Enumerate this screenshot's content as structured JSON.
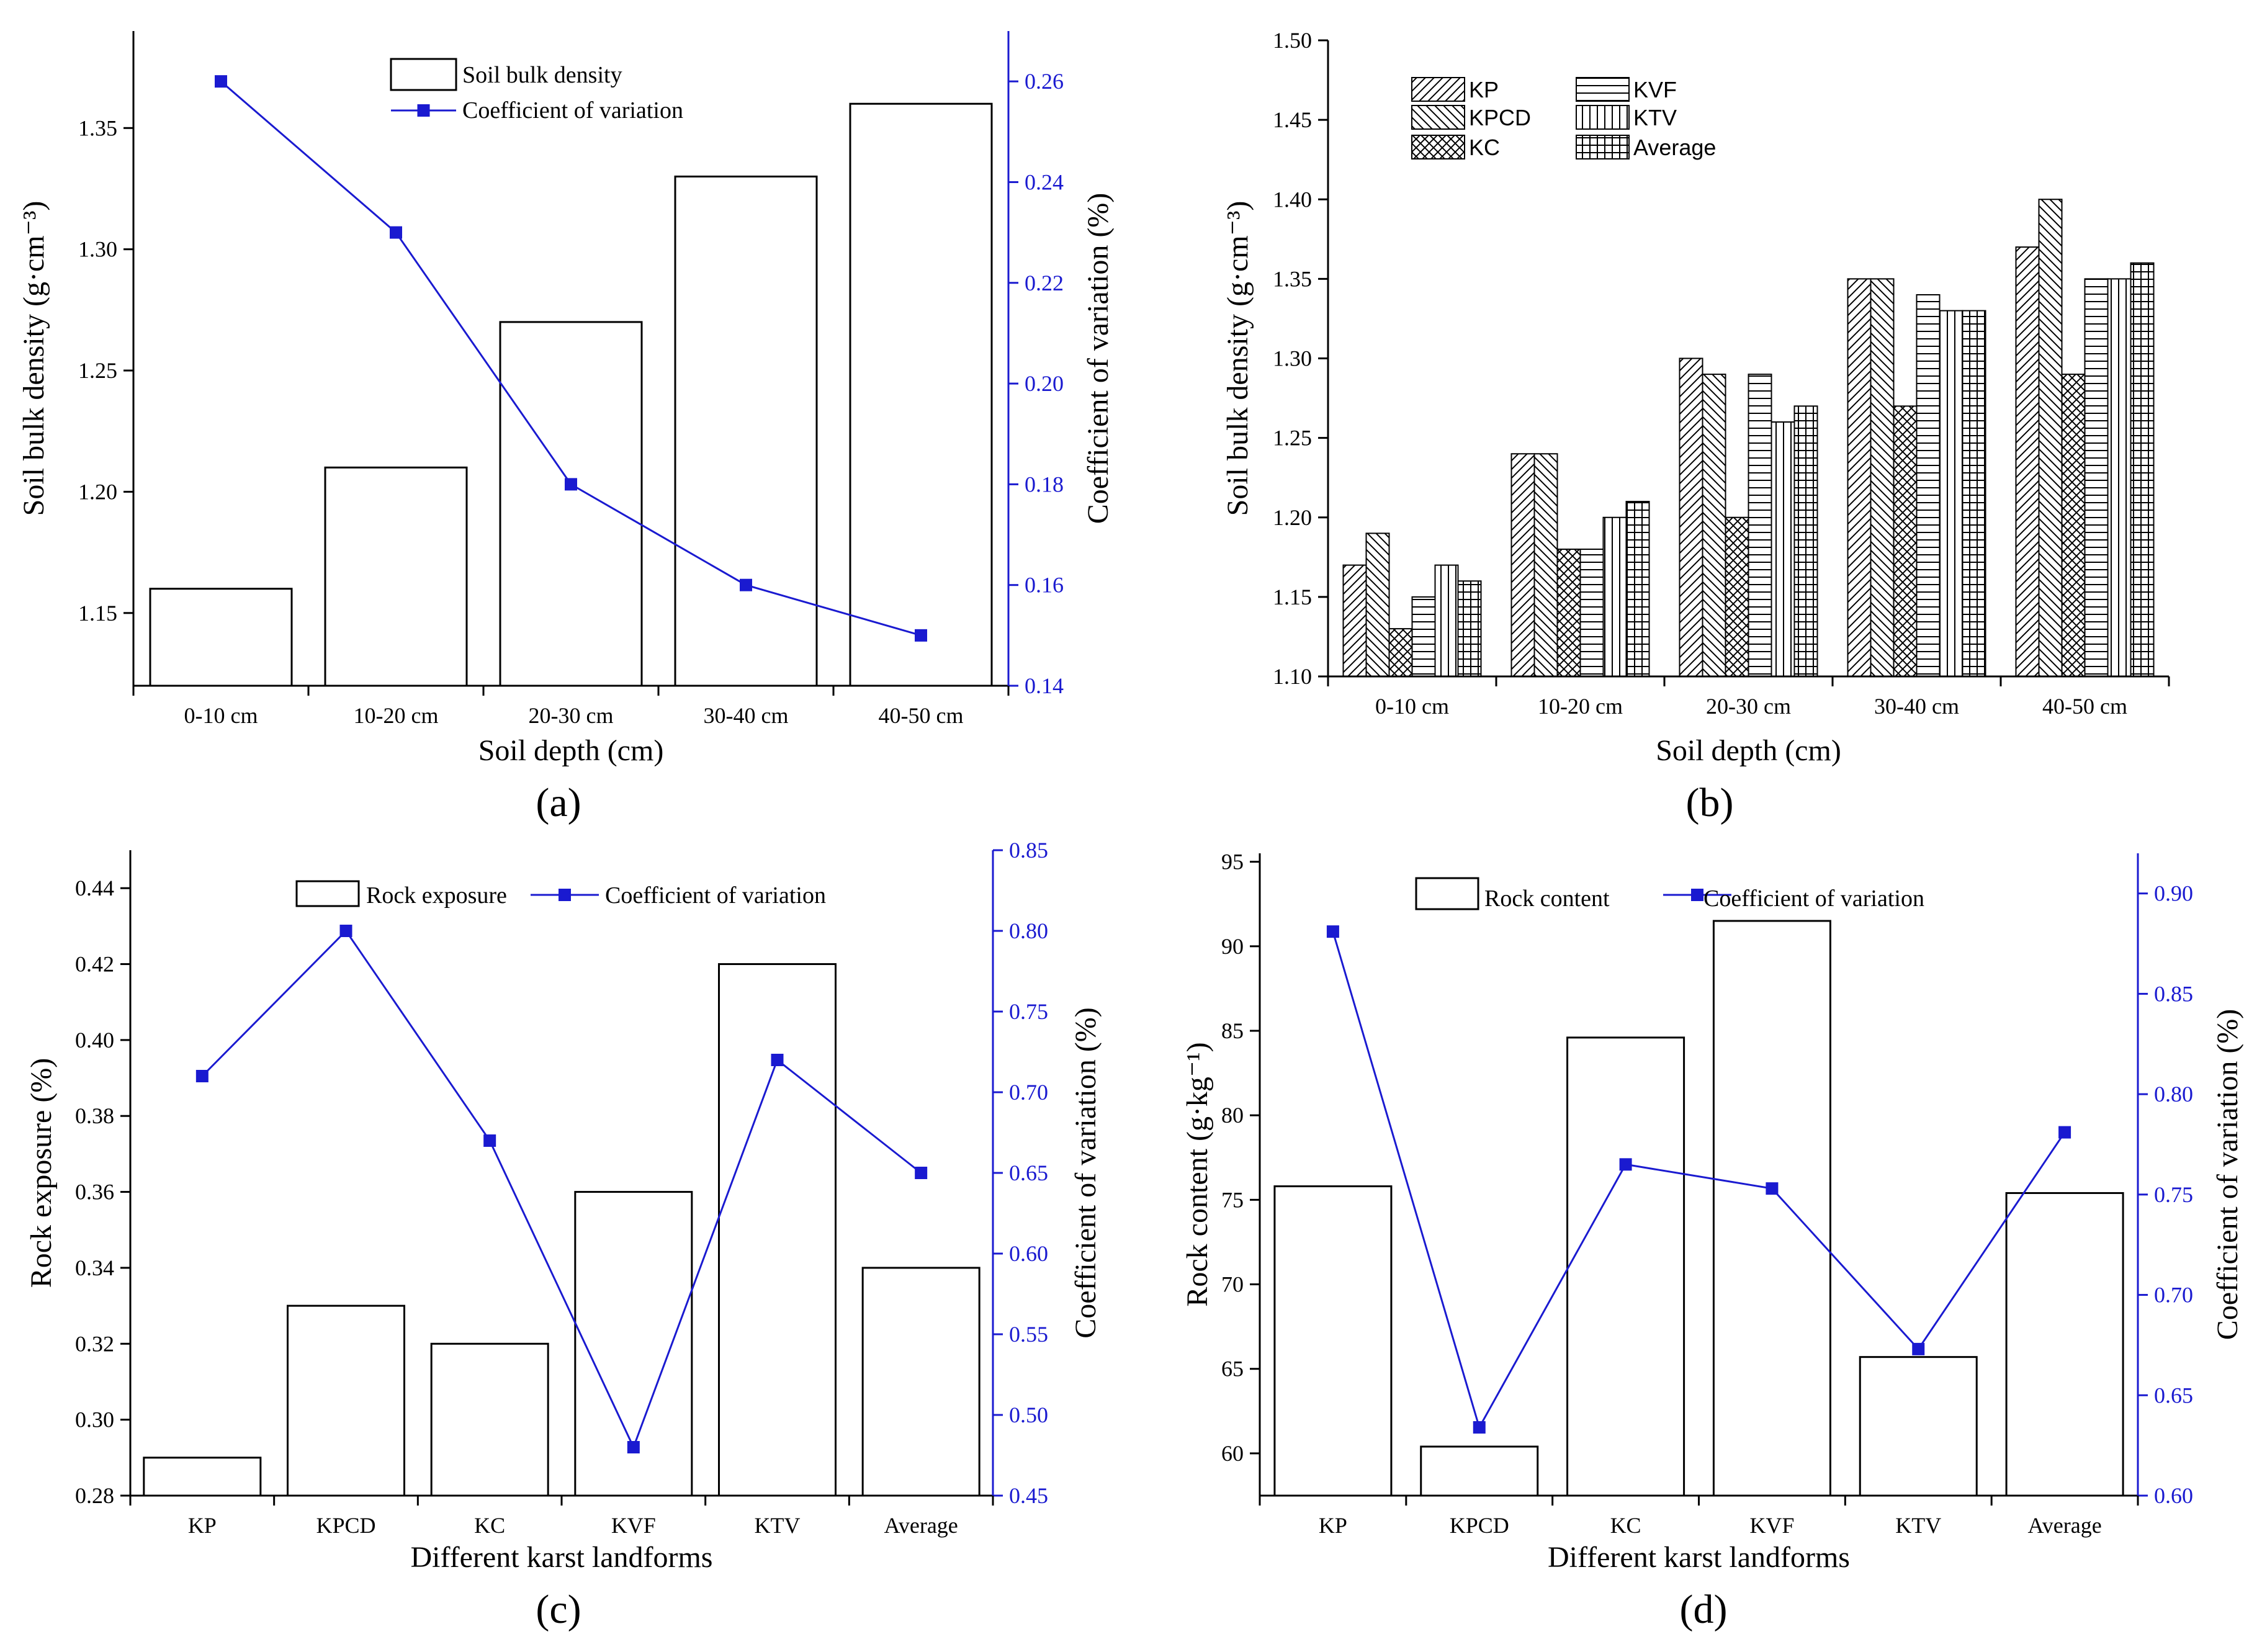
{
  "chart_data": [
    {
      "panel": "(a)",
      "type": "bar+line",
      "xlabel": "Soil depth (cm)",
      "ylabel": "Soil bulk density (g·cm⁻³)",
      "y2label": "Coefficient of variation (%)",
      "categories": [
        "0-10 cm",
        "10-20 cm",
        "20-30 cm",
        "30-40 cm",
        "40-50 cm"
      ],
      "ylim": [
        1.12,
        1.39
      ],
      "yticks": [
        "1.15",
        "1.20",
        "1.25",
        "1.30",
        "1.35"
      ],
      "y2lim": [
        0.14,
        0.27
      ],
      "y2ticks": [
        "0.14",
        "0.16",
        "0.18",
        "0.20",
        "0.22",
        "0.24",
        "0.26"
      ],
      "legend_position": "top-center",
      "series": [
        {
          "name": "Soil bulk density",
          "kind": "bar",
          "axis": "left",
          "values": [
            1.16,
            1.21,
            1.27,
            1.33,
            1.36
          ]
        },
        {
          "name": "Coefficient of variation",
          "kind": "line",
          "axis": "right",
          "color": "#1a1ad0",
          "values": [
            0.26,
            0.23,
            0.18,
            0.16,
            0.15
          ]
        }
      ]
    },
    {
      "panel": "(b)",
      "type": "bar",
      "xlabel": "Soil depth (cm)",
      "ylabel": "Soil bulk density (g·cm⁻³)",
      "categories": [
        "0-10 cm",
        "10-20 cm",
        "20-30 cm",
        "30-40 cm",
        "40-50 cm"
      ],
      "ylim": [
        1.1,
        1.5
      ],
      "yticks": [
        "1.10",
        "1.15",
        "1.20",
        "1.25",
        "1.30",
        "1.35",
        "1.40",
        "1.45",
        "1.50"
      ],
      "legend_position": "top-left",
      "series": [
        {
          "name": "KP",
          "pattern": "diag-right",
          "values": [
            1.17,
            1.24,
            1.3,
            1.35,
            1.37
          ]
        },
        {
          "name": "KPCD",
          "pattern": "diag-left",
          "values": [
            1.19,
            1.24,
            1.29,
            1.35,
            1.4
          ]
        },
        {
          "name": "KC",
          "pattern": "crosshatch",
          "values": [
            1.13,
            1.18,
            1.2,
            1.27,
            1.29
          ]
        },
        {
          "name": "KVF",
          "pattern": "horizontal",
          "values": [
            1.15,
            1.18,
            1.29,
            1.34,
            1.35
          ]
        },
        {
          "name": "KTV",
          "pattern": "vertical",
          "values": [
            1.17,
            1.2,
            1.26,
            1.33,
            1.35
          ]
        },
        {
          "name": "Average",
          "pattern": "grid",
          "values": [
            1.16,
            1.21,
            1.27,
            1.33,
            1.36
          ]
        }
      ]
    },
    {
      "panel": "(c)",
      "type": "bar+line",
      "xlabel": "Different karst landforms",
      "ylabel": "Rock exposure (%)",
      "y2label": "Coefficient of variation (%)",
      "categories": [
        "KP",
        "KPCD",
        "KC",
        "KVF",
        "KTV",
        "Average"
      ],
      "ylim": [
        0.28,
        0.45
      ],
      "yticks": [
        "0.28",
        "0.30",
        "0.32",
        "0.34",
        "0.36",
        "0.38",
        "0.40",
        "0.42",
        "0.44"
      ],
      "y2lim": [
        0.45,
        0.85
      ],
      "y2ticks": [
        "0.45",
        "0.50",
        "0.55",
        "0.60",
        "0.65",
        "0.70",
        "0.75",
        "0.80",
        "0.85"
      ],
      "legend_position": "top-center",
      "series": [
        {
          "name": "Rock exposure",
          "kind": "bar",
          "axis": "left",
          "values": [
            0.29,
            0.33,
            0.32,
            0.36,
            0.42,
            0.34
          ]
        },
        {
          "name": "Coefficient of variation",
          "kind": "line",
          "axis": "right",
          "color": "#1a1ad0",
          "values": [
            0.71,
            0.8,
            0.67,
            0.48,
            0.72,
            0.65
          ]
        }
      ]
    },
    {
      "panel": "(d)",
      "type": "bar+line",
      "xlabel": "Different karst landforms",
      "ylabel": "Rock content (g·kg⁻¹)",
      "y2label": "Coefficient of variation (%)",
      "categories": [
        "KP",
        "KPCD",
        "KC",
        "KVF",
        "KTV",
        "Average"
      ],
      "ylim": [
        57.5,
        95.5
      ],
      "yticks": [
        "60",
        "65",
        "70",
        "75",
        "80",
        "85",
        "90",
        "95"
      ],
      "y2lim": [
        0.6,
        0.92
      ],
      "y2ticks": [
        "0.60",
        "0.65",
        "0.70",
        "0.75",
        "0.80",
        "0.85",
        "0.90"
      ],
      "legend_position": "top-center",
      "series": [
        {
          "name": "Rock content",
          "kind": "bar",
          "axis": "left",
          "values": [
            75.8,
            60.4,
            84.6,
            91.5,
            65.7,
            75.4
          ]
        },
        {
          "name": "Coefficient of variation",
          "kind": "line",
          "axis": "right",
          "color": "#1a1ad0",
          "values": [
            0.881,
            0.634,
            0.765,
            0.753,
            0.673,
            0.781
          ]
        }
      ]
    }
  ]
}
